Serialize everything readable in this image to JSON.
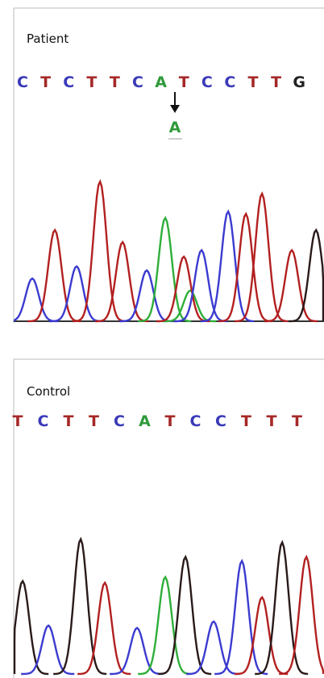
{
  "panels": [
    {
      "label": "Patient",
      "bases": [
        "C",
        "T",
        "C",
        "T",
        "T",
        "C",
        "A",
        "T",
        "C",
        "C",
        "T",
        "T",
        "G"
      ],
      "mutation": "A"
    },
    {
      "label": "Control",
      "bases": [
        "T",
        "C",
        "T",
        "T",
        "C",
        "A",
        "T",
        "C",
        "C",
        "T",
        "T",
        "T"
      ]
    }
  ]
}
